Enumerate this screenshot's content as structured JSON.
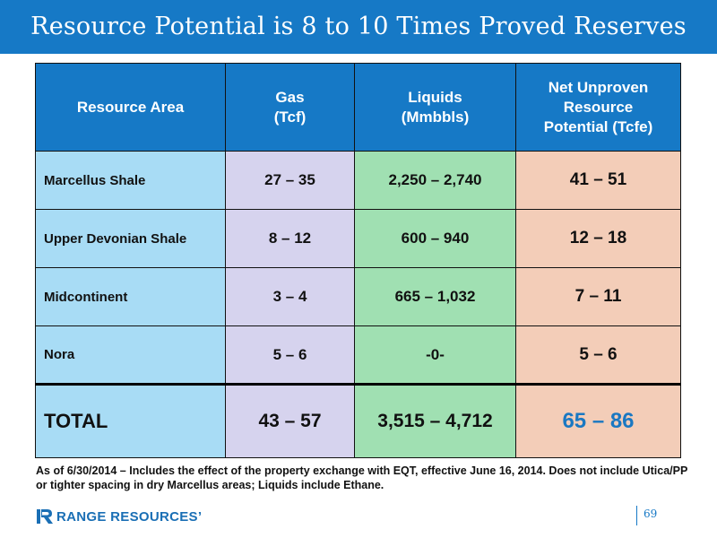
{
  "slide": {
    "title": "Resource Potential is 8 to 10 Times Proved Reserves",
    "page_number": "69",
    "accent_color": "#1679c6"
  },
  "table": {
    "headers": {
      "area": "Resource Area",
      "gas_line1": "Gas",
      "gas_line2": "(Tcf)",
      "liquids_line1": "Liquids",
      "liquids_line2": "(Mmbbls)",
      "net_line1": "Net Unproven",
      "net_line2": "Resource",
      "net_line3": "Potential (Tcfe)"
    },
    "rows": [
      {
        "area": "Marcellus Shale",
        "gas": "27 – 35",
        "liquids": "2,250 – 2,740",
        "net": "41 – 51"
      },
      {
        "area": "Upper Devonian Shale",
        "gas": "8 – 12",
        "liquids": "600 –  940",
        "net": "12 – 18"
      },
      {
        "area": "Midcontinent",
        "gas": "3 – 4",
        "liquids": "665  – 1,032",
        "net": "7 – 11"
      },
      {
        "area": "Nora",
        "gas": "5 – 6",
        "liquids": "-0-",
        "net": "5 – 6"
      }
    ],
    "total": {
      "area": "TOTAL",
      "gas": "43 – 57",
      "liquids": "3,515 – 4,712",
      "net": "65 – 86"
    },
    "column_colors": {
      "header": "#1679c6",
      "area": "#a8dcf5",
      "gas": "#d6d3ee",
      "liquids": "#a0e0b2",
      "net": "#f3cdb8",
      "total_net_text": "#1a78c2"
    }
  },
  "footnote": "As of 6/30/2014 – Includes the effect of the property exchange with EQT, effective June 16, 2014. Does not include Utica/PP or tighter spacing in dry Marcellus areas; Liquids include Ethane.",
  "logo": {
    "text": "RANGE RESOURCES’",
    "icon": "range-resources-logo-icon",
    "color": "#1a6fb5"
  }
}
